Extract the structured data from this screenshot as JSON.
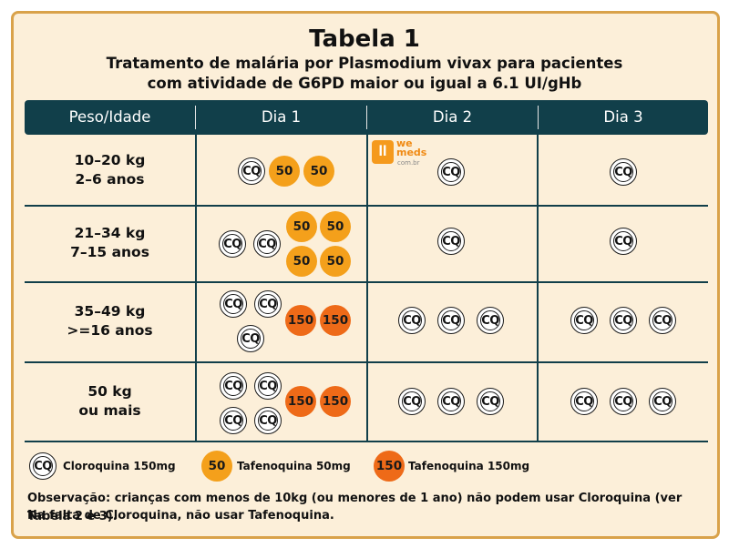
{
  "title": "Tabela 1",
  "subtitle_line1": "Tratamento de malária por Plasmodium vivax para pacientes",
  "subtitle_line2": "com atividade de G6PD maior ou igual a 6.1 UI/gHb",
  "headers": [
    "Peso/Idade",
    "Dia 1",
    "Dia 2",
    "Dia 3"
  ],
  "rows": [
    {
      "weight": "10–20 kg",
      "age": "2–6 anos"
    },
    {
      "weight": "21–34 kg",
      "age": "7–15 anos"
    },
    {
      "weight": "35–49 kg",
      "age": ">=16 anos"
    },
    {
      "weight": "50 kg",
      "age": "ou mais"
    }
  ],
  "pill_labels": {
    "cq": "CQ",
    "t50": "50",
    "t150": "150"
  },
  "logo": {
    "word1": "we",
    "word2": "meds",
    "domain": "com.br"
  },
  "legend": {
    "cloroquina": "Cloroquina 150mg",
    "tafenoquina50": "Tafenoquina 50mg",
    "tafenoquina150": "Tafenoquina 150mg"
  },
  "observation_line1": "Observação: crianças com menos de 10kg (ou menores de 1 ano) não podem usar Cloroquina (ver Tabela 2 e 3).",
  "observation_line2": "Na falta de Cloroquina, não usar Tafenoquina.",
  "colors": {
    "frame_border": "#d9a24a",
    "background": "#fcefd9",
    "header": "#113f4a",
    "tafenoquina50": "#f4a01b",
    "tafenoquina150": "#ee6a18"
  }
}
